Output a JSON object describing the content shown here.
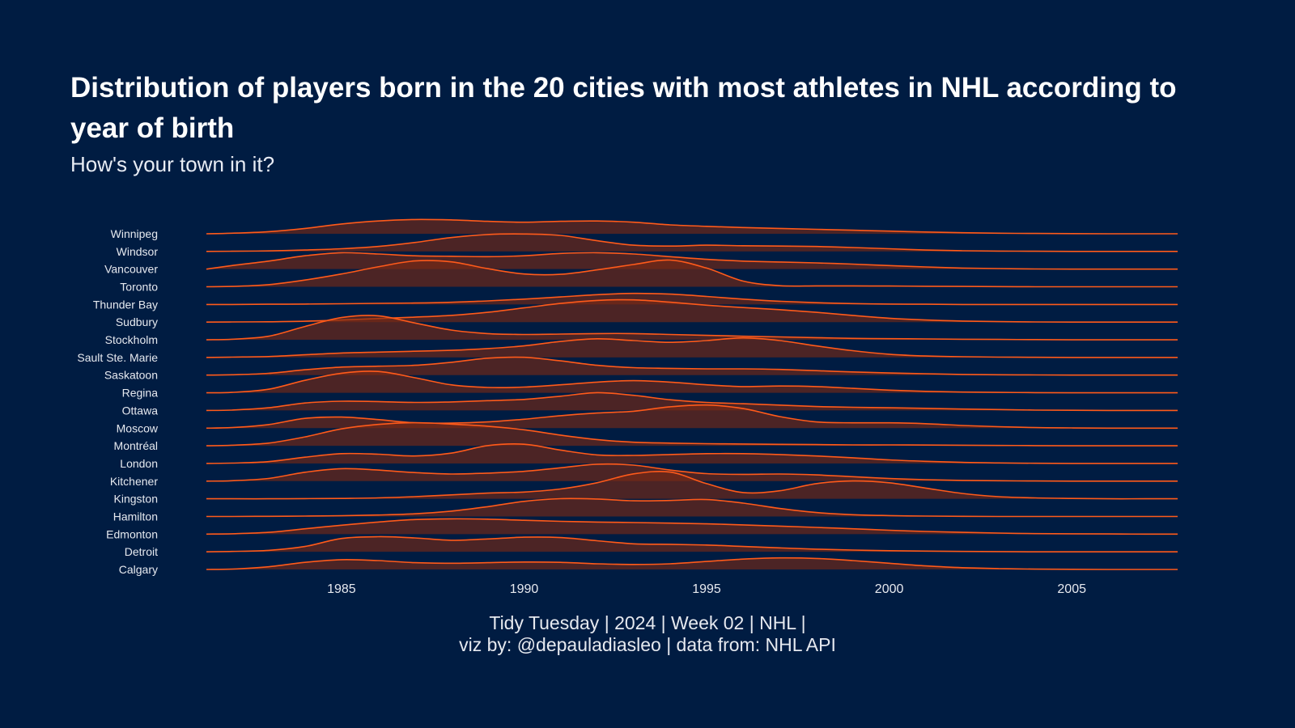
{
  "title": "Distribution of players born in the 20 cities with most athletes in NHL according to year of birth",
  "subtitle": "How's your town in it?",
  "caption": {
    "line1": "Tidy Tuesday | 2024 | Week 02 | NHL |",
    "line2": "viz by: @depauladiasleo | data from: NHL API"
  },
  "colors": {
    "background": "#001c42",
    "line": "#ff5a1a",
    "fill": "#7a2a14"
  },
  "chart_data": {
    "type": "area",
    "subtype": "ridgeline-density",
    "xlim": [
      1981.3,
      2007.9
    ],
    "x_ticks": [
      1985,
      1990,
      1995,
      2000,
      2005
    ],
    "categories": [
      "Calgary",
      "Detroit",
      "Edmonton",
      "Hamilton",
      "Kingston",
      "Kitchener",
      "London",
      "Montréal",
      "Moscow",
      "Ottawa",
      "Regina",
      "Saskatoon",
      "Sault Ste. Marie",
      "Stockholm",
      "Sudbury",
      "Thunder Bay",
      "Toronto",
      "Vancouver",
      "Windsor",
      "Winnipeg"
    ],
    "x": [
      1981,
      1982,
      1983,
      1984,
      1985,
      1986,
      1987,
      1988,
      1989,
      1990,
      1991,
      1992,
      1993,
      1994,
      1995,
      1996,
      1997,
      1998,
      1999,
      2000,
      2001,
      2002,
      2003,
      2004,
      2005,
      2006,
      2007,
      2008
    ],
    "series": [
      {
        "name": "Calgary",
        "values": [
          0,
          0.02,
          0.15,
          0.4,
          0.55,
          0.5,
          0.38,
          0.35,
          0.38,
          0.42,
          0.4,
          0.32,
          0.28,
          0.32,
          0.45,
          0.58,
          0.65,
          0.62,
          0.5,
          0.35,
          0.2,
          0.1,
          0.05,
          0.02,
          0.01,
          0,
          0,
          0
        ]
      },
      {
        "name": "Detroit",
        "values": [
          0,
          0.02,
          0.08,
          0.3,
          0.75,
          0.85,
          0.78,
          0.65,
          0.72,
          0.82,
          0.8,
          0.62,
          0.45,
          0.42,
          0.38,
          0.3,
          0.22,
          0.15,
          0.1,
          0.06,
          0.04,
          0.02,
          0.01,
          0,
          0,
          0,
          0,
          0
        ]
      },
      {
        "name": "Edmonton",
        "values": [
          0,
          0.02,
          0.1,
          0.3,
          0.5,
          0.68,
          0.82,
          0.86,
          0.84,
          0.78,
          0.72,
          0.68,
          0.65,
          0.62,
          0.58,
          0.52,
          0.45,
          0.38,
          0.3,
          0.22,
          0.15,
          0.1,
          0.06,
          0.03,
          0.02,
          0.01,
          0,
          0
        ]
      },
      {
        "name": "Hamilton",
        "values": [
          0,
          0,
          0.01,
          0.02,
          0.04,
          0.08,
          0.15,
          0.3,
          0.55,
          0.85,
          1.0,
          0.98,
          0.88,
          0.9,
          0.95,
          0.75,
          0.45,
          0.22,
          0.1,
          0.05,
          0.02,
          0.01,
          0,
          0,
          0,
          0,
          0,
          0
        ]
      },
      {
        "name": "Kingston",
        "values": [
          0,
          0,
          0,
          0.01,
          0.02,
          0.05,
          0.12,
          0.22,
          0.32,
          0.38,
          0.55,
          0.9,
          1.4,
          1.5,
          0.85,
          0.35,
          0.45,
          0.85,
          1.0,
          0.9,
          0.6,
          0.3,
          0.12,
          0.05,
          0.02,
          0,
          0,
          0
        ]
      },
      {
        "name": "Kitchener",
        "values": [
          0,
          0.02,
          0.15,
          0.5,
          0.7,
          0.62,
          0.48,
          0.4,
          0.45,
          0.55,
          0.75,
          0.95,
          0.9,
          0.62,
          0.42,
          0.38,
          0.4,
          0.35,
          0.25,
          0.15,
          0.08,
          0.04,
          0.02,
          0.01,
          0,
          0,
          0,
          0
        ]
      },
      {
        "name": "London",
        "values": [
          0,
          0.02,
          0.1,
          0.35,
          0.55,
          0.52,
          0.42,
          0.58,
          1.0,
          1.08,
          0.75,
          0.48,
          0.45,
          0.5,
          0.55,
          0.55,
          0.5,
          0.42,
          0.32,
          0.2,
          0.12,
          0.06,
          0.03,
          0.01,
          0,
          0,
          0,
          0
        ]
      },
      {
        "name": "Montréal",
        "values": [
          0,
          0.03,
          0.15,
          0.5,
          0.95,
          1.2,
          1.3,
          1.22,
          1.1,
          0.9,
          0.6,
          0.35,
          0.2,
          0.15,
          0.12,
          0.1,
          0.08,
          0.07,
          0.05,
          0.05,
          0.04,
          0.03,
          0.02,
          0.01,
          0,
          0,
          0,
          0
        ]
      },
      {
        "name": "Moscow",
        "values": [
          0,
          0.03,
          0.2,
          0.55,
          0.62,
          0.48,
          0.3,
          0.28,
          0.35,
          0.5,
          0.7,
          0.85,
          0.95,
          1.2,
          1.3,
          1.1,
          0.65,
          0.35,
          0.3,
          0.3,
          0.25,
          0.15,
          0.08,
          0.03,
          0.01,
          0,
          0,
          0
        ]
      },
      {
        "name": "Ottawa",
        "values": [
          0,
          0.02,
          0.15,
          0.42,
          0.52,
          0.5,
          0.45,
          0.48,
          0.55,
          0.62,
          0.8,
          1.0,
          0.85,
          0.6,
          0.45,
          0.38,
          0.3,
          0.22,
          0.18,
          0.15,
          0.12,
          0.08,
          0.05,
          0.02,
          0.01,
          0,
          0,
          0
        ]
      },
      {
        "name": "Regina",
        "values": [
          0,
          0.02,
          0.2,
          0.7,
          1.1,
          1.2,
          0.85,
          0.45,
          0.3,
          0.32,
          0.45,
          0.6,
          0.68,
          0.6,
          0.45,
          0.35,
          0.38,
          0.35,
          0.25,
          0.15,
          0.08,
          0.04,
          0.02,
          0.01,
          0,
          0,
          0,
          0
        ]
      },
      {
        "name": "Saskatoon",
        "values": [
          0,
          0.02,
          0.1,
          0.3,
          0.45,
          0.5,
          0.55,
          0.72,
          0.95,
          1.0,
          0.8,
          0.55,
          0.42,
          0.38,
          0.35,
          0.35,
          0.32,
          0.25,
          0.18,
          0.12,
          0.08,
          0.04,
          0.02,
          0.01,
          0,
          0,
          0,
          0
        ]
      },
      {
        "name": "Sault Ste. Marie",
        "values": [
          0,
          0.02,
          0.05,
          0.15,
          0.25,
          0.3,
          0.35,
          0.4,
          0.5,
          0.65,
          0.9,
          1.05,
          0.95,
          0.85,
          0.95,
          1.1,
          0.95,
          0.65,
          0.38,
          0.18,
          0.08,
          0.04,
          0.02,
          0.01,
          0,
          0,
          0,
          0
        ]
      },
      {
        "name": "Stockholm",
        "values": [
          0,
          0.03,
          0.2,
          0.75,
          1.25,
          1.35,
          0.95,
          0.55,
          0.35,
          0.3,
          0.32,
          0.35,
          0.35,
          0.3,
          0.25,
          0.2,
          0.16,
          0.12,
          0.08,
          0.06,
          0.05,
          0.03,
          0.02,
          0.01,
          0,
          0,
          0,
          0
        ]
      },
      {
        "name": "Sudbury",
        "values": [
          0,
          0.01,
          0.02,
          0.05,
          0.12,
          0.2,
          0.28,
          0.38,
          0.55,
          0.8,
          1.05,
          1.22,
          1.25,
          1.12,
          0.95,
          0.82,
          0.7,
          0.55,
          0.38,
          0.22,
          0.12,
          0.06,
          0.03,
          0.01,
          0,
          0,
          0,
          0
        ]
      },
      {
        "name": "Thunder Bay",
        "values": [
          0,
          0,
          0.01,
          0.02,
          0.04,
          0.06,
          0.08,
          0.12,
          0.2,
          0.3,
          0.42,
          0.55,
          0.62,
          0.58,
          0.45,
          0.3,
          0.18,
          0.1,
          0.05,
          0.02,
          0.01,
          0,
          0,
          0,
          0,
          0,
          0,
          0
        ]
      },
      {
        "name": "Toronto",
        "values": [
          0,
          0.02,
          0.12,
          0.38,
          0.72,
          1.12,
          1.45,
          1.4,
          1.02,
          0.72,
          0.7,
          0.95,
          1.25,
          1.5,
          1.05,
          0.32,
          0.06,
          0.05,
          0.05,
          0.04,
          0.03,
          0.02,
          0.01,
          0,
          0,
          0,
          0,
          0
        ]
      },
      {
        "name": "Vancouver",
        "values": [
          0,
          0.2,
          0.45,
          0.75,
          0.92,
          0.85,
          0.75,
          0.72,
          0.7,
          0.75,
          0.88,
          0.92,
          0.85,
          0.7,
          0.55,
          0.45,
          0.4,
          0.35,
          0.28,
          0.2,
          0.12,
          0.06,
          0.03,
          0.01,
          0,
          0,
          0,
          0
        ]
      },
      {
        "name": "Windsor",
        "values": [
          0,
          0.01,
          0.03,
          0.08,
          0.15,
          0.28,
          0.5,
          0.78,
          0.95,
          0.98,
          0.9,
          0.6,
          0.35,
          0.3,
          0.35,
          0.32,
          0.3,
          0.28,
          0.22,
          0.15,
          0.08,
          0.04,
          0.02,
          0.01,
          0,
          0,
          0,
          0
        ]
      },
      {
        "name": "Winnipeg",
        "values": [
          0,
          0.03,
          0.12,
          0.3,
          0.55,
          0.72,
          0.8,
          0.78,
          0.7,
          0.65,
          0.7,
          0.72,
          0.65,
          0.5,
          0.42,
          0.35,
          0.3,
          0.25,
          0.2,
          0.15,
          0.1,
          0.06,
          0.03,
          0.02,
          0.01,
          0,
          0,
          0
        ]
      }
    ]
  }
}
